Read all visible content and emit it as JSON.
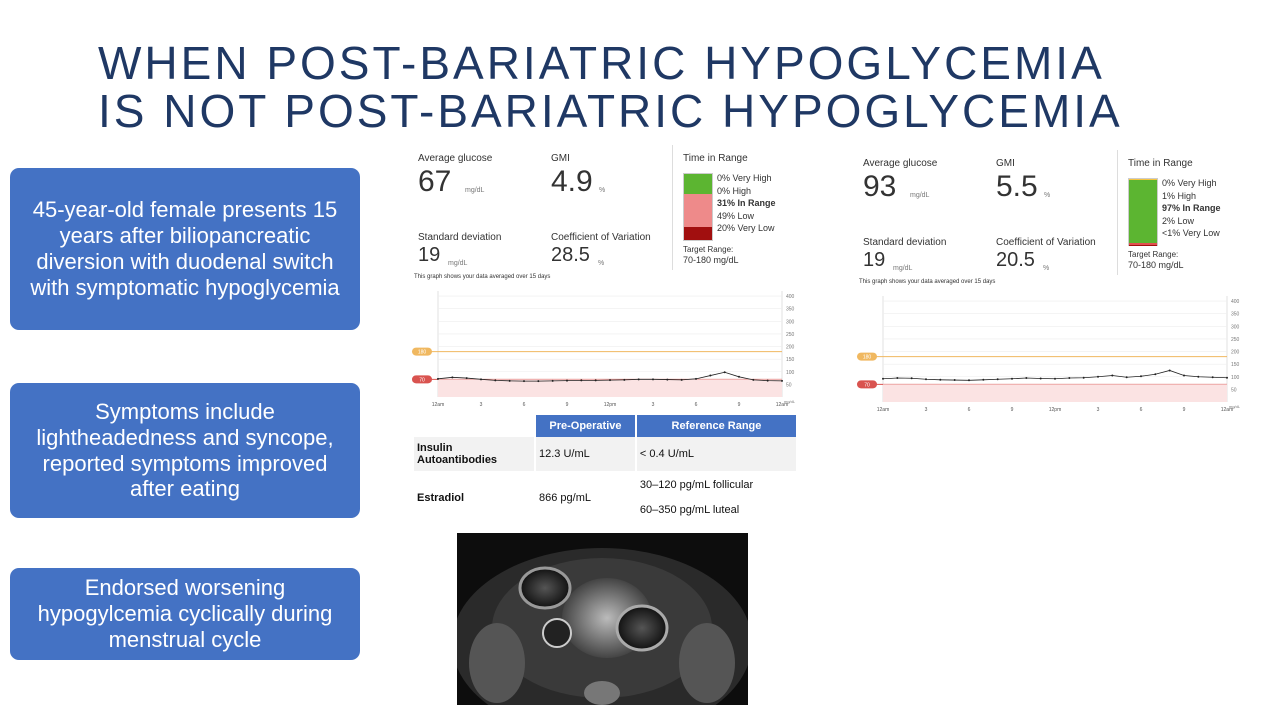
{
  "title": [
    "WHEN POST-BARIATRIC HYPOGLYCEMIA",
    "IS NOT POST-BARIATRIC HYPOGLYCEMIA"
  ],
  "boxes": [
    "45-year-old female presents 15 years after biliopancreatic diversion with duodenal switch with symptomatic hypoglycemia",
    "Symptoms include lightheadedness and syncope, reported symptoms improved after eating",
    "Endorsed worsening hypogylcemia cyclically during menstrual cycle"
  ],
  "reports": [
    {
      "average_glucose": {
        "label": "Average glucose",
        "value": 67,
        "unit": "mg/dL"
      },
      "gmi": {
        "label": "GMI",
        "value": 4.9,
        "unit": "%"
      },
      "sd": {
        "label": "Standard deviation",
        "value": 19,
        "unit": "mg/dL"
      },
      "cv": {
        "label": "Coefficient of Variation",
        "value": 28.5,
        "unit": "%"
      },
      "tir": {
        "title": "Time in Range",
        "values": [
          0,
          0,
          31,
          49,
          20
        ],
        "value_labels": [
          "0% Very High",
          "0% High",
          "31% In Range",
          "49% Low",
          "20% Very Low"
        ],
        "colors": [
          "#f39c12",
          "#f5c542",
          "#5cb531",
          "#ee8a8a",
          "#a10f0f"
        ],
        "target_label": "Target Range:",
        "target": "70-180 mg/dL"
      },
      "graph_note": "This graph shows your data averaged over 15 days",
      "yticks": [
        50,
        100,
        150,
        200,
        250,
        300,
        350,
        400
      ],
      "ylim": [
        0,
        420
      ],
      "y_unit": "mg/dL",
      "xlabels": [
        "12am",
        "3",
        "6",
        "9",
        "12pm",
        "3",
        "6",
        "9",
        "12am"
      ],
      "targets": [
        180,
        70
      ],
      "trace": [
        72,
        78,
        75,
        70,
        66,
        64,
        63,
        63,
        64,
        65,
        66,
        66,
        67,
        68,
        70,
        70,
        69,
        68,
        72,
        85,
        98,
        80,
        68,
        65,
        64
      ]
    },
    {
      "average_glucose": {
        "label": "Average glucose",
        "value": 93,
        "unit": "mg/dL"
      },
      "gmi": {
        "label": "GMI",
        "value": 5.5,
        "unit": "%"
      },
      "sd": {
        "label": "Standard deviation",
        "value": 19,
        "unit": "mg/dL"
      },
      "cv": {
        "label": "Coefficient of Variation",
        "value": 20.5,
        "unit": "%"
      },
      "tir": {
        "title": "Time in Range",
        "values": [
          0,
          1,
          97,
          2,
          0.5
        ],
        "value_labels": [
          "0% Very High",
          "1% High",
          "97% In Range",
          "2% Low",
          "<1% Very Low"
        ],
        "colors": [
          "#f39c12",
          "#f5c542",
          "#5cb531",
          "#e05050",
          "#a10f0f"
        ],
        "target_label": "Target Range:",
        "target": "70-180 mg/dL"
      },
      "graph_note": "This graph shows your data averaged over 15 days",
      "yticks": [
        50,
        100,
        150,
        200,
        250,
        300,
        350,
        400
      ],
      "ylim": [
        0,
        420
      ],
      "y_unit": "mg/dL",
      "xlabels": [
        "12am",
        "3",
        "6",
        "9",
        "12pm",
        "3",
        "6",
        "9",
        "12am"
      ],
      "targets": [
        180,
        70
      ],
      "trace": [
        92,
        95,
        94,
        90,
        88,
        87,
        86,
        88,
        90,
        92,
        95,
        93,
        92,
        95,
        96,
        100,
        105,
        98,
        102,
        110,
        125,
        105,
        100,
        98,
        96
      ]
    }
  ],
  "table": {
    "header": [
      "",
      "Pre-Operative",
      "Reference Range"
    ],
    "rows": [
      [
        "Insulin Autoantibodies",
        "12.3 U/mL",
        "< 0.4 U/mL"
      ],
      [
        "Estradiol",
        "866 pg/mL",
        [
          "30–120 pg/mL follicular",
          "60–350 pg/mL luteal"
        ]
      ]
    ]
  }
}
